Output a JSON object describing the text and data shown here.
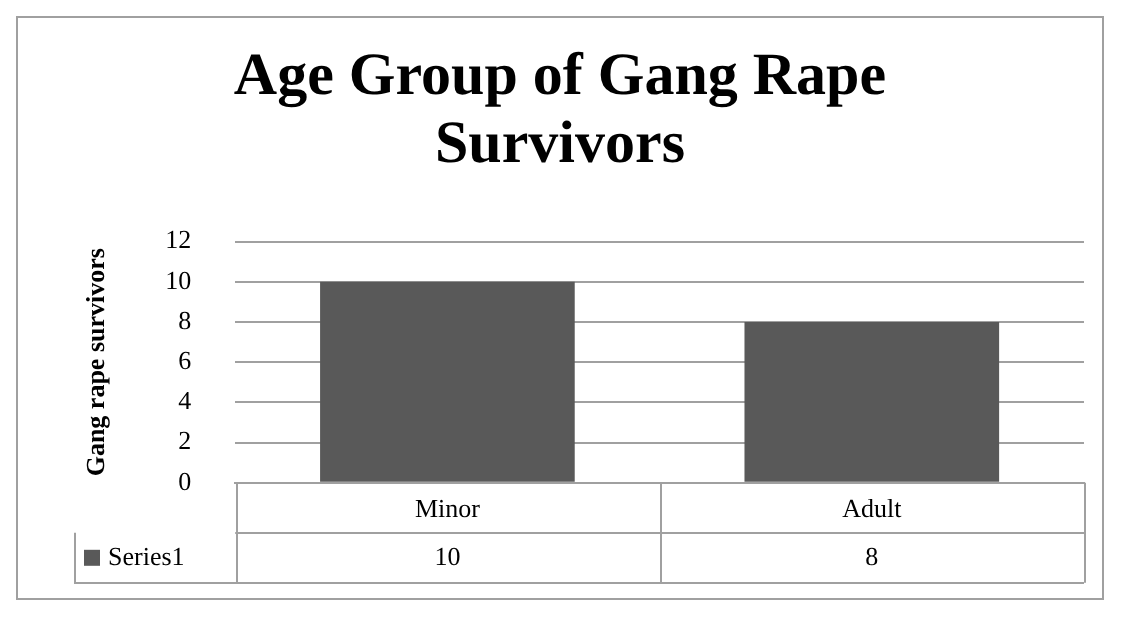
{
  "chart_data": {
    "type": "bar",
    "title": "Age Group of Gang Rape Survivors",
    "ylabel": "Gang rape survivors",
    "categories": [
      "Minor",
      "Adult"
    ],
    "series": [
      {
        "name": "Series1",
        "color": "#595959",
        "values": [
          10,
          8
        ]
      }
    ],
    "ylim": [
      0,
      12
    ],
    "yticks": [
      0,
      2,
      4,
      6,
      8,
      10,
      12
    ],
    "grid": "y",
    "data_labels": true
  }
}
